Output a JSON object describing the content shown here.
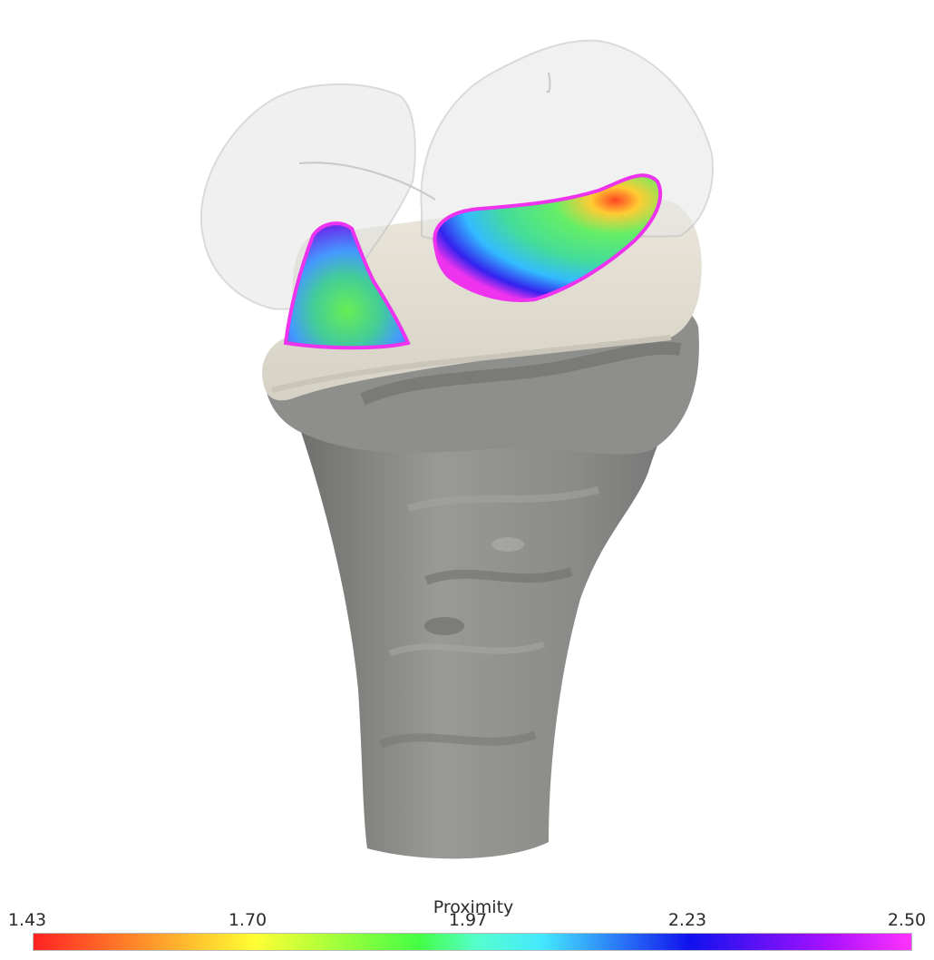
{
  "scene": {
    "objects": [
      {
        "name": "tibia-bone",
        "color": "#8d8d8b"
      },
      {
        "name": "tibial-plateau-cartilage",
        "color": "#ddd9cd"
      },
      {
        "name": "femoral-cartilage-transparent",
        "color": "#e9e9e9"
      },
      {
        "name": "lateral-contact-region"
      },
      {
        "name": "medial-contact-region"
      }
    ]
  },
  "colorbar": {
    "title": "Proximity",
    "ticks": [
      {
        "label": "1.43",
        "value": 1.43
      },
      {
        "label": "1.70",
        "value": 1.7
      },
      {
        "label": "1.97",
        "value": 1.97
      },
      {
        "label": "2.23",
        "value": 2.23
      },
      {
        "label": "2.50",
        "value": 2.5
      }
    ],
    "range": [
      1.43,
      2.5
    ],
    "stops": [
      {
        "value": 1.43,
        "color": "#ff2222"
      },
      {
        "value": 1.7,
        "color": "#ffff33"
      },
      {
        "value": 1.9,
        "color": "#44ff44"
      },
      {
        "value": 1.97,
        "color": "#55ffcc"
      },
      {
        "value": 2.05,
        "color": "#44e8ff"
      },
      {
        "value": 2.23,
        "color": "#1111ee"
      },
      {
        "value": 2.4,
        "color": "#aa11ff"
      },
      {
        "value": 2.5,
        "color": "#ff33ff"
      }
    ]
  }
}
